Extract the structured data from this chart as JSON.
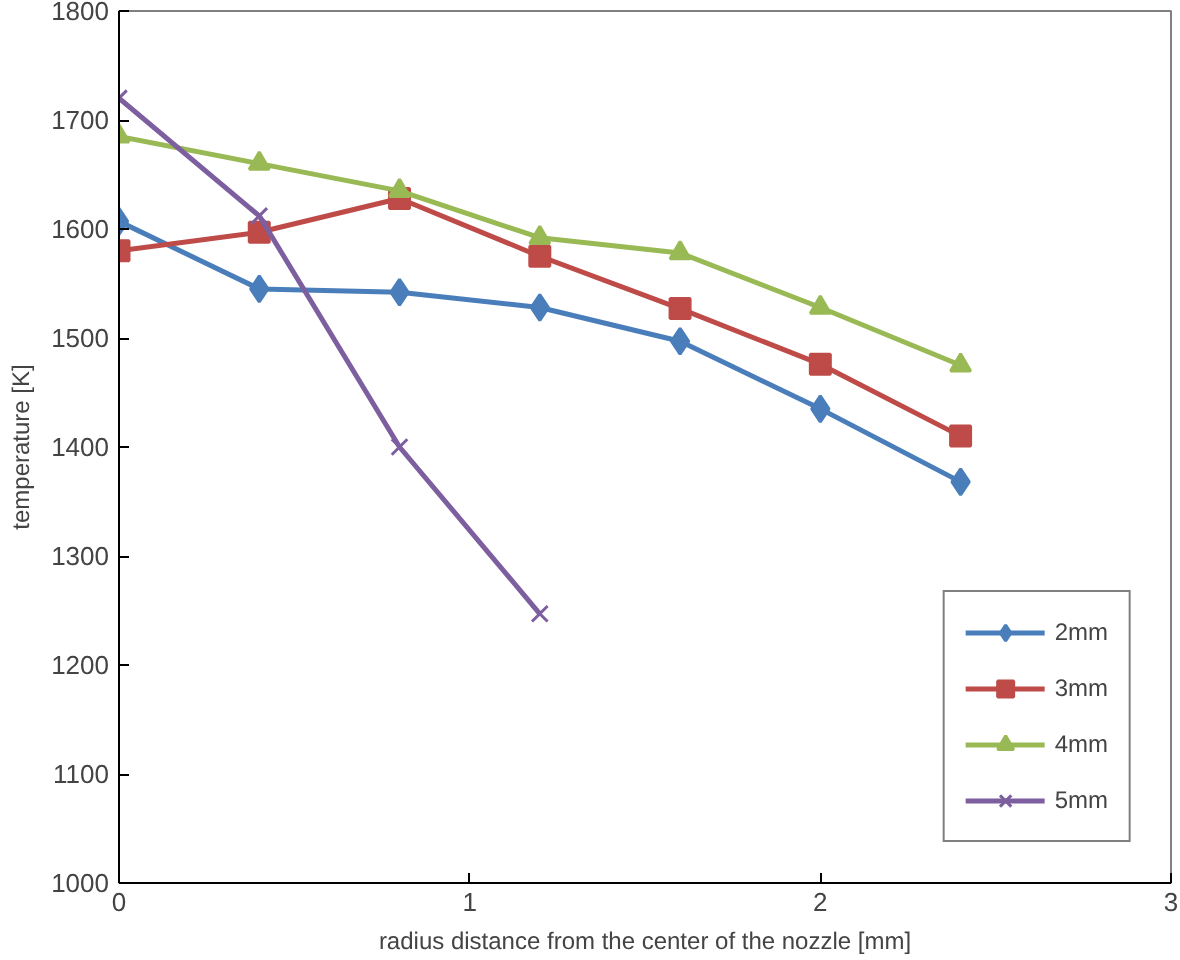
{
  "chart_data": {
    "type": "line",
    "xlabel": "radius distance from the center of the nozzle [mm]",
    "ylabel": "temperature [K]",
    "xlim": [
      0,
      3
    ],
    "xticks": [
      0,
      1,
      2,
      3
    ],
    "ylim": [
      1000,
      1800
    ],
    "yticks": [
      1000,
      1100,
      1200,
      1300,
      1400,
      1500,
      1600,
      1700,
      1800
    ],
    "grid": false,
    "legend": "bottom right",
    "series": [
      {
        "name": "2mm",
        "color": "#4a7ebb",
        "marker": "diamond",
        "x": [
          0,
          0.4,
          0.8,
          1.2,
          1.6,
          2.0,
          2.4
        ],
        "values": [
          1607,
          1545,
          1542,
          1528,
          1497,
          1435,
          1368
        ]
      },
      {
        "name": "3mm",
        "color": "#be4b48",
        "marker": "square",
        "x": [
          0,
          0.4,
          0.8,
          1.2,
          1.6,
          2.0,
          2.4
        ],
        "values": [
          1580,
          1597,
          1628,
          1575,
          1527,
          1476,
          1410
        ]
      },
      {
        "name": "4mm",
        "color": "#98b954",
        "marker": "triangle",
        "x": [
          0,
          0.4,
          0.8,
          1.2,
          1.6,
          2.0,
          2.4
        ],
        "values": [
          1685,
          1660,
          1635,
          1592,
          1578,
          1528,
          1475
        ]
      },
      {
        "name": "5mm",
        "color": "#7d5fa0",
        "marker": "cross",
        "x": [
          0,
          0.4,
          0.8,
          1.2
        ],
        "values": [
          1720,
          1612,
          1400,
          1247
        ]
      }
    ]
  }
}
